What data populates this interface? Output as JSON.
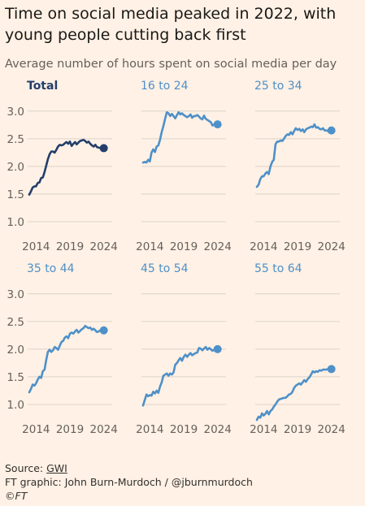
{
  "title": "Time on social media peaked in 2022, with young people cutting back first",
  "subtitle": "Average number of hours spent on social media per day",
  "footer": {
    "source_label": "Source: ",
    "source_name": "GWI",
    "credit": "FT graphic: John Burn-Murdoch / @jburnmurdoch",
    "copyright": "©FT"
  },
  "colors": {
    "total": "#233E6B",
    "age": "#4E90C8",
    "grid": "#DCD3CA",
    "tick_text": "#66605C"
  },
  "chart_data": [
    {
      "type": "line",
      "title": "Total",
      "x_ticks": [
        "2014",
        "2019",
        "2024"
      ],
      "y_ticks": [
        "1.0",
        "1.5",
        "2.0",
        "2.5",
        "3.0"
      ],
      "xlim": [
        2013,
        2025
      ],
      "ylim": [
        0.75,
        3.1
      ],
      "x": [
        2013.0,
        2013.25,
        2013.5,
        2013.75,
        2014.0,
        2014.25,
        2014.5,
        2014.75,
        2015.0,
        2015.25,
        2015.5,
        2015.75,
        2016.0,
        2016.25,
        2016.5,
        2016.75,
        2017.0,
        2017.25,
        2017.5,
        2017.75,
        2018.0,
        2018.25,
        2018.5,
        2018.75,
        2019.0,
        2019.25,
        2019.5,
        2019.75,
        2020.0,
        2020.25,
        2020.5,
        2020.75,
        2021.0,
        2021.25,
        2021.5,
        2021.75,
        2022.0,
        2022.25,
        2022.5,
        2022.75,
        2023.0,
        2023.25,
        2023.5,
        2023.75,
        2024.0
      ],
      "values": [
        1.49,
        1.55,
        1.62,
        1.64,
        1.64,
        1.7,
        1.71,
        1.79,
        1.8,
        1.9,
        2.01,
        2.13,
        2.22,
        2.27,
        2.27,
        2.25,
        2.3,
        2.36,
        2.39,
        2.38,
        2.39,
        2.42,
        2.44,
        2.41,
        2.45,
        2.37,
        2.41,
        2.44,
        2.4,
        2.43,
        2.46,
        2.47,
        2.48,
        2.46,
        2.43,
        2.45,
        2.41,
        2.38,
        2.36,
        2.39,
        2.35,
        2.34,
        2.33,
        2.33,
        2.33
      ]
    },
    {
      "type": "line",
      "title": "16 to 24",
      "x_ticks": [
        "2014",
        "2019",
        "2024"
      ],
      "y_ticks": [],
      "xlim": [
        2013,
        2025
      ],
      "ylim": [
        0.75,
        3.1
      ],
      "x": [
        2013.0,
        2013.25,
        2013.5,
        2013.75,
        2014.0,
        2014.25,
        2014.5,
        2014.75,
        2015.0,
        2015.25,
        2015.5,
        2015.75,
        2016.0,
        2016.25,
        2016.5,
        2016.75,
        2017.0,
        2017.25,
        2017.5,
        2017.75,
        2018.0,
        2018.25,
        2018.5,
        2018.75,
        2019.0,
        2019.25,
        2019.5,
        2019.75,
        2020.0,
        2020.25,
        2020.5,
        2020.75,
        2021.0,
        2021.25,
        2021.5,
        2021.75,
        2022.0,
        2022.25,
        2022.5,
        2022.75,
        2023.0,
        2023.25,
        2023.5,
        2023.75,
        2024.0
      ],
      "values": [
        2.07,
        2.08,
        2.07,
        2.12,
        2.09,
        2.25,
        2.31,
        2.26,
        2.36,
        2.38,
        2.48,
        2.62,
        2.73,
        2.86,
        2.98,
        2.96,
        2.91,
        2.95,
        2.91,
        2.87,
        2.93,
        2.98,
        2.94,
        2.96,
        2.93,
        2.91,
        2.89,
        2.91,
        2.94,
        2.88,
        2.91,
        2.91,
        2.93,
        2.9,
        2.87,
        2.85,
        2.92,
        2.86,
        2.84,
        2.82,
        2.8,
        2.74,
        2.76,
        2.77,
        2.76
      ]
    },
    {
      "type": "line",
      "title": "25 to 34",
      "x_ticks": [
        "2014",
        "2019",
        "2024"
      ],
      "y_ticks": [],
      "xlim": [
        2013,
        2025
      ],
      "ylim": [
        0.75,
        3.1
      ],
      "x": [
        2013.0,
        2013.25,
        2013.5,
        2013.75,
        2014.0,
        2014.25,
        2014.5,
        2014.75,
        2015.0,
        2015.25,
        2015.5,
        2015.75,
        2016.0,
        2016.25,
        2016.5,
        2016.75,
        2017.0,
        2017.25,
        2017.5,
        2017.75,
        2018.0,
        2018.25,
        2018.5,
        2018.75,
        2019.0,
        2019.25,
        2019.5,
        2019.75,
        2020.0,
        2020.25,
        2020.5,
        2020.75,
        2021.0,
        2021.25,
        2021.5,
        2021.75,
        2022.0,
        2022.25,
        2022.5,
        2022.75,
        2023.0,
        2023.25,
        2023.5,
        2023.75,
        2024.0
      ],
      "values": [
        1.63,
        1.67,
        1.77,
        1.82,
        1.82,
        1.87,
        1.9,
        1.86,
        2.0,
        2.08,
        2.12,
        2.4,
        2.45,
        2.45,
        2.47,
        2.46,
        2.5,
        2.55,
        2.58,
        2.57,
        2.62,
        2.58,
        2.64,
        2.69,
        2.66,
        2.68,
        2.64,
        2.67,
        2.62,
        2.67,
        2.69,
        2.7,
        2.72,
        2.71,
        2.76,
        2.7,
        2.71,
        2.68,
        2.67,
        2.69,
        2.65,
        2.65,
        2.64,
        2.65,
        2.65
      ]
    },
    {
      "type": "line",
      "title": "35 to 44",
      "x_ticks": [
        "2014",
        "2019",
        "2024"
      ],
      "y_ticks": [
        "1.0",
        "1.5",
        "2.0",
        "2.5",
        "3.0"
      ],
      "xlim": [
        2013,
        2025
      ],
      "ylim": [
        0.75,
        3.1
      ],
      "x": [
        2013.0,
        2013.25,
        2013.5,
        2013.75,
        2014.0,
        2014.25,
        2014.5,
        2014.75,
        2015.0,
        2015.25,
        2015.5,
        2015.75,
        2016.0,
        2016.25,
        2016.5,
        2016.75,
        2017.0,
        2017.25,
        2017.5,
        2017.75,
        2018.0,
        2018.25,
        2018.5,
        2018.75,
        2019.0,
        2019.25,
        2019.5,
        2019.75,
        2020.0,
        2020.25,
        2020.5,
        2020.75,
        2021.0,
        2021.25,
        2021.5,
        2021.75,
        2022.0,
        2022.25,
        2022.5,
        2022.75,
        2023.0,
        2023.25,
        2023.5,
        2023.75,
        2024.0
      ],
      "values": [
        1.22,
        1.28,
        1.36,
        1.34,
        1.38,
        1.45,
        1.5,
        1.48,
        1.6,
        1.63,
        1.8,
        1.95,
        1.99,
        1.95,
        1.98,
        2.04,
        2.02,
        1.99,
        2.06,
        2.13,
        2.15,
        2.21,
        2.23,
        2.2,
        2.28,
        2.3,
        2.28,
        2.32,
        2.35,
        2.3,
        2.33,
        2.36,
        2.38,
        2.42,
        2.4,
        2.38,
        2.39,
        2.35,
        2.37,
        2.34,
        2.31,
        2.32,
        2.34,
        2.34,
        2.34
      ]
    },
    {
      "type": "line",
      "title": "45 to 54",
      "x_ticks": [
        "2014",
        "2019",
        "2024"
      ],
      "y_ticks": [],
      "xlim": [
        2013,
        2025
      ],
      "ylim": [
        0.75,
        3.1
      ],
      "x": [
        2013.0,
        2013.25,
        2013.5,
        2013.75,
        2014.0,
        2014.25,
        2014.5,
        2014.75,
        2015.0,
        2015.25,
        2015.5,
        2015.75,
        2016.0,
        2016.25,
        2016.5,
        2016.75,
        2017.0,
        2017.25,
        2017.5,
        2017.75,
        2018.0,
        2018.25,
        2018.5,
        2018.75,
        2019.0,
        2019.25,
        2019.5,
        2019.75,
        2020.0,
        2020.25,
        2020.5,
        2020.75,
        2021.0,
        2021.25,
        2021.5,
        2021.75,
        2022.0,
        2022.25,
        2022.5,
        2022.75,
        2023.0,
        2023.25,
        2023.5,
        2023.75,
        2024.0
      ],
      "values": [
        0.98,
        1.08,
        1.18,
        1.15,
        1.17,
        1.16,
        1.23,
        1.2,
        1.25,
        1.21,
        1.32,
        1.4,
        1.52,
        1.54,
        1.56,
        1.52,
        1.56,
        1.54,
        1.58,
        1.72,
        1.75,
        1.8,
        1.84,
        1.79,
        1.86,
        1.9,
        1.86,
        1.9,
        1.93,
        1.89,
        1.91,
        1.93,
        1.94,
        2.02,
        2.01,
        1.98,
        2.01,
        2.04,
        1.99,
        2.02,
        2.0,
        1.97,
        1.99,
        2.0,
        2.0
      ]
    },
    {
      "type": "line",
      "title": "55 to 64",
      "x_ticks": [
        "2014",
        "2019",
        "2024"
      ],
      "y_ticks": [],
      "xlim": [
        2013,
        2025
      ],
      "ylim": [
        0.75,
        3.1
      ],
      "x": [
        2013.0,
        2013.25,
        2013.5,
        2013.75,
        2014.0,
        2014.25,
        2014.5,
        2014.75,
        2015.0,
        2015.25,
        2015.5,
        2015.75,
        2016.0,
        2016.25,
        2016.5,
        2016.75,
        2017.0,
        2017.25,
        2017.5,
        2017.75,
        2018.0,
        2018.25,
        2018.5,
        2018.75,
        2019.0,
        2019.25,
        2019.5,
        2019.75,
        2020.0,
        2020.25,
        2020.5,
        2020.75,
        2021.0,
        2021.25,
        2021.5,
        2021.75,
        2022.0,
        2022.25,
        2022.5,
        2022.75,
        2023.0,
        2023.25,
        2023.5,
        2023.75,
        2024.0
      ],
      "values": [
        0.72,
        0.78,
        0.76,
        0.84,
        0.8,
        0.83,
        0.88,
        0.82,
        0.88,
        0.91,
        0.96,
        1.0,
        1.05,
        1.09,
        1.1,
        1.11,
        1.12,
        1.12,
        1.15,
        1.18,
        1.19,
        1.23,
        1.3,
        1.34,
        1.36,
        1.38,
        1.36,
        1.4,
        1.44,
        1.41,
        1.46,
        1.49,
        1.54,
        1.6,
        1.58,
        1.6,
        1.59,
        1.62,
        1.61,
        1.63,
        1.63,
        1.63,
        1.64,
        1.64,
        1.64
      ]
    }
  ]
}
